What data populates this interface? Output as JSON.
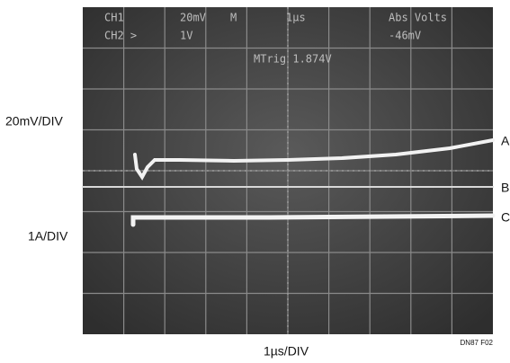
{
  "screen": {
    "readouts": [
      "CH1",
      "20mV",
      "M",
      "1µs",
      "Abs Volts",
      "CH2 >",
      "1V",
      "-46mV",
      "MTrig 1.874V"
    ]
  },
  "axis_labels": {
    "upper_scale": "20mV/DIV",
    "lower_scale": "1A/DIV",
    "time_scale": "1µs/DIV"
  },
  "traces": [
    "A",
    "B",
    "C"
  ],
  "figure_id": "DN87 F02"
}
